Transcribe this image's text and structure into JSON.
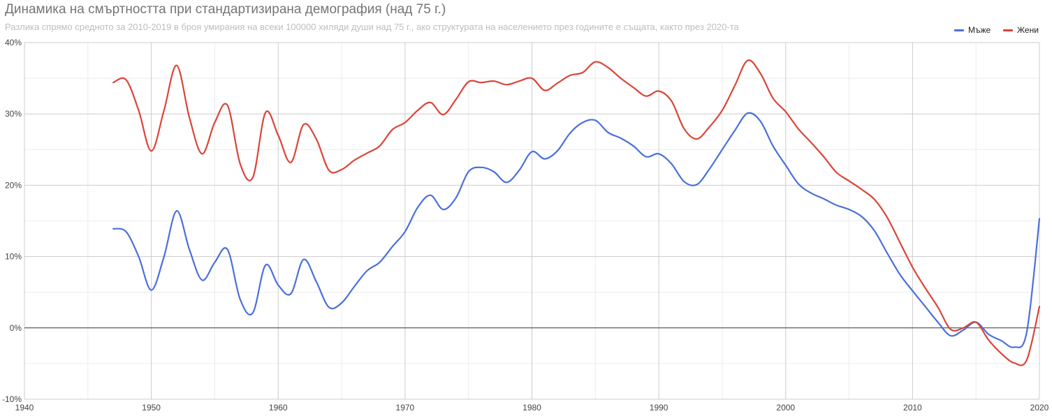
{
  "chart_data": {
    "type": "line",
    "title": "Динамика на смъртността при стандартизирана демография (над 75 г.)",
    "subtitle": "Разлика спрямо средното за 2010-2019 в броя умирания на всеки 100000 хиляди души над 75 г., ако структурата на населението през годините е същата, както през 2020-та",
    "xlabel": "",
    "ylabel": "",
    "xlim": [
      1940,
      2020
    ],
    "ylim": [
      -10,
      40
    ],
    "x_ticks": [
      "1940",
      "1950",
      "1960",
      "1970",
      "1980",
      "1990",
      "2000",
      "2010",
      "2020"
    ],
    "y_ticks": [
      "-10%",
      "0%",
      "10%",
      "20%",
      "30%",
      "40%"
    ],
    "grid": true,
    "legend_position": "top-right",
    "x": [
      1947,
      1948,
      1949,
      1950,
      1951,
      1952,
      1953,
      1954,
      1955,
      1956,
      1957,
      1958,
      1959,
      1960,
      1961,
      1962,
      1963,
      1964,
      1965,
      1966,
      1967,
      1968,
      1969,
      1970,
      1971,
      1972,
      1973,
      1974,
      1975,
      1976,
      1977,
      1978,
      1979,
      1980,
      1981,
      1982,
      1983,
      1984,
      1985,
      1986,
      1987,
      1988,
      1989,
      1990,
      1991,
      1992,
      1993,
      1994,
      1995,
      1996,
      1997,
      1998,
      1999,
      2000,
      2001,
      2002,
      2003,
      2004,
      2005,
      2006,
      2007,
      2008,
      2009,
      2010,
      2011,
      2012,
      2013,
      2014,
      2015,
      2016,
      2017,
      2018,
      2019,
      2020
    ],
    "series": [
      {
        "name": "Мъже",
        "color": "#4a6fdc",
        "values": [
          13.9,
          13.5,
          10,
          5.3,
          10,
          16.4,
          11,
          6.7,
          9.2,
          11,
          4,
          2.1,
          8.8,
          6,
          4.8,
          9.6,
          6.5,
          2.9,
          3.5,
          5.8,
          8,
          9.2,
          11.4,
          13.5,
          16.9,
          18.6,
          16.6,
          18.2,
          21.9,
          22.5,
          21.9,
          20.4,
          22.1,
          24.7,
          23.7,
          24.8,
          27.3,
          28.8,
          29.1,
          27.4,
          26.6,
          25.5,
          24,
          24.4,
          23,
          20.5,
          20.1,
          22.3,
          25,
          27.7,
          30.1,
          29,
          25.5,
          22.8,
          20.2,
          18.9,
          18.1,
          17.2,
          16.6,
          15.6,
          13.6,
          10.5,
          7.5,
          5.2,
          3,
          0.8,
          -1.1,
          -0.3,
          0.8,
          -0.9,
          -1.8,
          -2.7,
          -0.6,
          15.3
        ]
      },
      {
        "name": "Жени",
        "color": "#db4437",
        "values": [
          34.4,
          34.8,
          30.5,
          24.8,
          30.5,
          36.8,
          29.5,
          24.4,
          28.8,
          31.2,
          23,
          21.1,
          30.2,
          27,
          23.2,
          28.5,
          26.5,
          22.1,
          22.2,
          23.5,
          24.5,
          25.5,
          27.8,
          28.8,
          30.5,
          31.6,
          29.9,
          32,
          34.5,
          34.4,
          34.6,
          34.1,
          34.6,
          35,
          33.3,
          34.3,
          35.4,
          35.8,
          37.3,
          36.5,
          35,
          33.7,
          32.5,
          33.2,
          31.8,
          27.9,
          26.5,
          28.2,
          30.5,
          34,
          37.5,
          35.7,
          32.2,
          30.3,
          27.9,
          26,
          24,
          21.8,
          20.6,
          19.4,
          18,
          15.5,
          12,
          8.5,
          5.6,
          2.9,
          -0.2,
          0,
          0.8,
          -1.7,
          -3.6,
          -4.9,
          -4.5,
          3
        ]
      }
    ]
  }
}
